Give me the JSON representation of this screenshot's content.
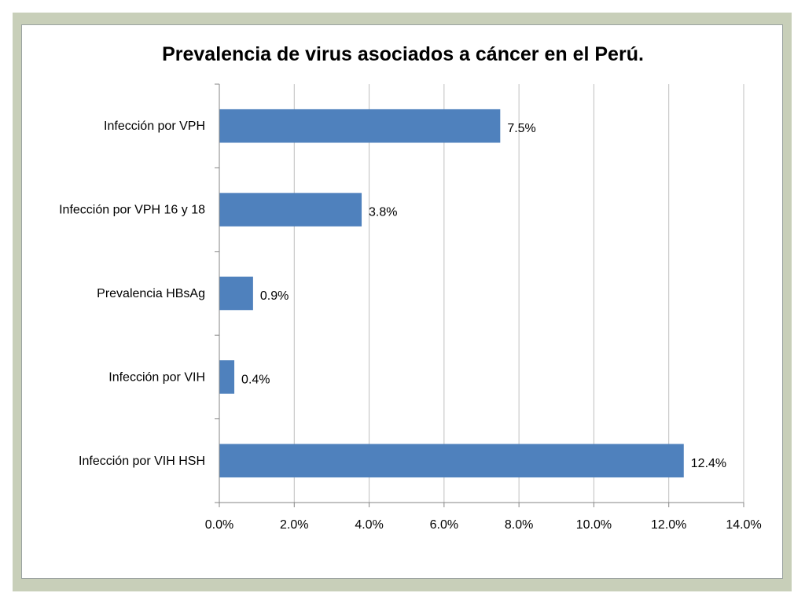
{
  "chart_data": {
    "type": "bar",
    "orientation": "horizontal",
    "title": "Prevalencia de virus asociados a cáncer en el Perú.",
    "categories": [
      "Infección por VPH",
      "Infección por VPH 16 y 18",
      "Prevalencia HBsAg",
      "Infección por VIH",
      "Infección por VIH HSH"
    ],
    "values": [
      7.5,
      3.8,
      0.9,
      0.4,
      12.4
    ],
    "value_labels": [
      "7.5%",
      "3.8%",
      "0.9%",
      "0.4%",
      "12.4%"
    ],
    "xlim": [
      0,
      14
    ],
    "xticks": [
      0,
      2,
      4,
      6,
      8,
      10,
      12,
      14
    ],
    "xtick_labels": [
      "0.0%",
      "2.0%",
      "4.0%",
      "6.0%",
      "8.0%",
      "10.0%",
      "12.0%",
      "14.0%"
    ],
    "grid": true,
    "legend": "none",
    "colors": {
      "bar": "#4f81bd",
      "grid": "#bfbfbf",
      "axis": "#868686",
      "frame": "#c8cfb9"
    }
  }
}
